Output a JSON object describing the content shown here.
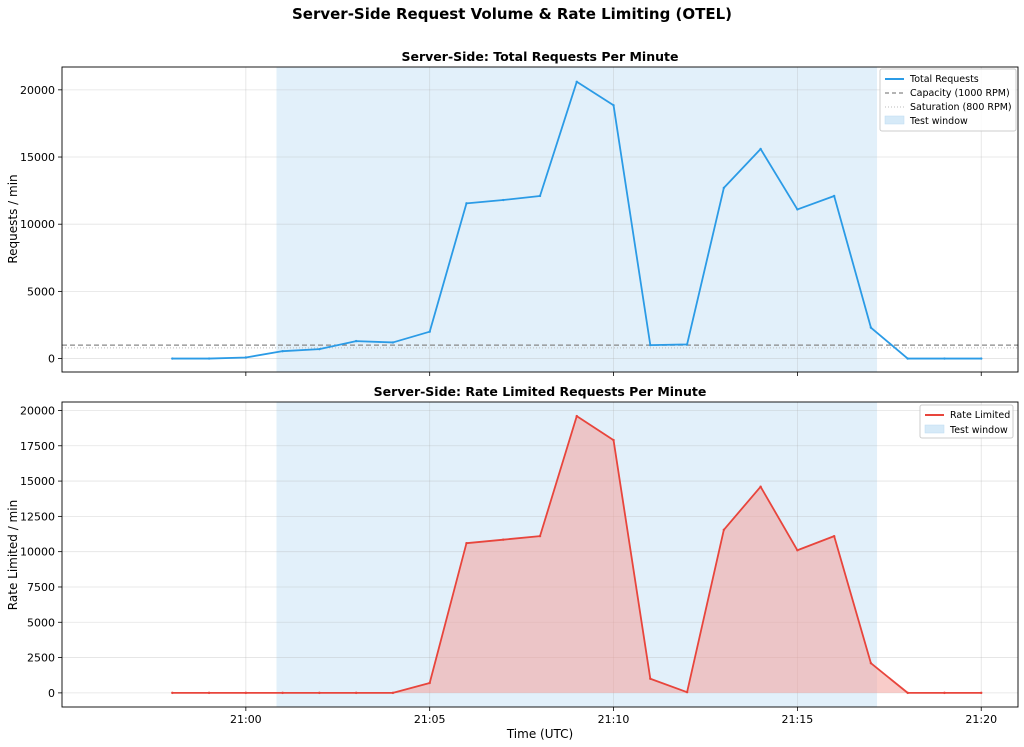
{
  "figure": {
    "title": "Server-Side Request Volume & Rate Limiting (OTEL)"
  },
  "colors": {
    "total": "#2b9be6",
    "rate_limited": "#e8453c",
    "rate_fill": "#f4a29c",
    "window_fill": "#d6eaf8",
    "capacity": "#888888",
    "saturation": "#bbbbbb"
  },
  "chart_data": [
    {
      "type": "line",
      "title": "Server-Side: Total Requests Per Minute",
      "xlabel": "",
      "ylabel": "Requests / min",
      "x": [
        "20:58",
        "20:59",
        "21:00",
        "21:01",
        "21:02",
        "21:03",
        "21:04",
        "21:05",
        "21:06",
        "21:07",
        "21:08",
        "21:09",
        "21:10",
        "21:11",
        "21:12",
        "21:13",
        "21:14",
        "21:15",
        "21:16",
        "21:17",
        "21:18",
        "21:19",
        "21:20"
      ],
      "xticks": [
        "21:00",
        "21:05",
        "21:10",
        "21:15",
        "21:20"
      ],
      "yticks": [
        "0",
        "5000",
        "10000",
        "15000",
        "20000"
      ],
      "ylim": [
        -1000,
        21700
      ],
      "grid": true,
      "legend_position": "top-right",
      "test_window": [
        "21:00:50",
        "21:17:10"
      ],
      "series": [
        {
          "name": "Total Requests",
          "values": [
            0,
            0,
            80,
            550,
            700,
            1300,
            1200,
            2000,
            11550,
            11800,
            12100,
            20600,
            18850,
            1000,
            1050,
            12700,
            15600,
            11100,
            12100,
            2300,
            0,
            0,
            0
          ]
        }
      ],
      "reference_lines": [
        {
          "name": "Capacity (1000 RPM)",
          "value": 1000,
          "style": "dashed"
        },
        {
          "name": "Saturation (800 RPM)",
          "value": 800,
          "style": "dotted"
        }
      ],
      "legend": [
        "Total Requests",
        "Capacity (1000 RPM)",
        "Saturation (800 RPM)",
        "Test window"
      ]
    },
    {
      "type": "area",
      "title": "Server-Side: Rate Limited Requests Per Minute",
      "xlabel": "Time (UTC)",
      "ylabel": "Rate Limited / min",
      "x": [
        "20:58",
        "20:59",
        "21:00",
        "21:01",
        "21:02",
        "21:03",
        "21:04",
        "21:05",
        "21:06",
        "21:07",
        "21:08",
        "21:09",
        "21:10",
        "21:11",
        "21:12",
        "21:13",
        "21:14",
        "21:15",
        "21:16",
        "21:17",
        "21:18",
        "21:19",
        "21:20"
      ],
      "xticks": [
        "21:00",
        "21:05",
        "21:10",
        "21:15",
        "21:20"
      ],
      "yticks": [
        "0",
        "2500",
        "5000",
        "7500",
        "10000",
        "12500",
        "15000",
        "17500",
        "20000"
      ],
      "ylim": [
        -1000,
        20600
      ],
      "grid": true,
      "legend_position": "top-right",
      "test_window": [
        "21:00:50",
        "21:17:10"
      ],
      "series": [
        {
          "name": "Rate Limited",
          "values": [
            0,
            0,
            0,
            0,
            0,
            0,
            0,
            700,
            10600,
            10850,
            11100,
            19600,
            17900,
            1000,
            50,
            11550,
            14600,
            10100,
            11100,
            2100,
            0,
            0,
            0
          ]
        }
      ],
      "legend": [
        "Rate Limited",
        "Test window"
      ]
    }
  ]
}
